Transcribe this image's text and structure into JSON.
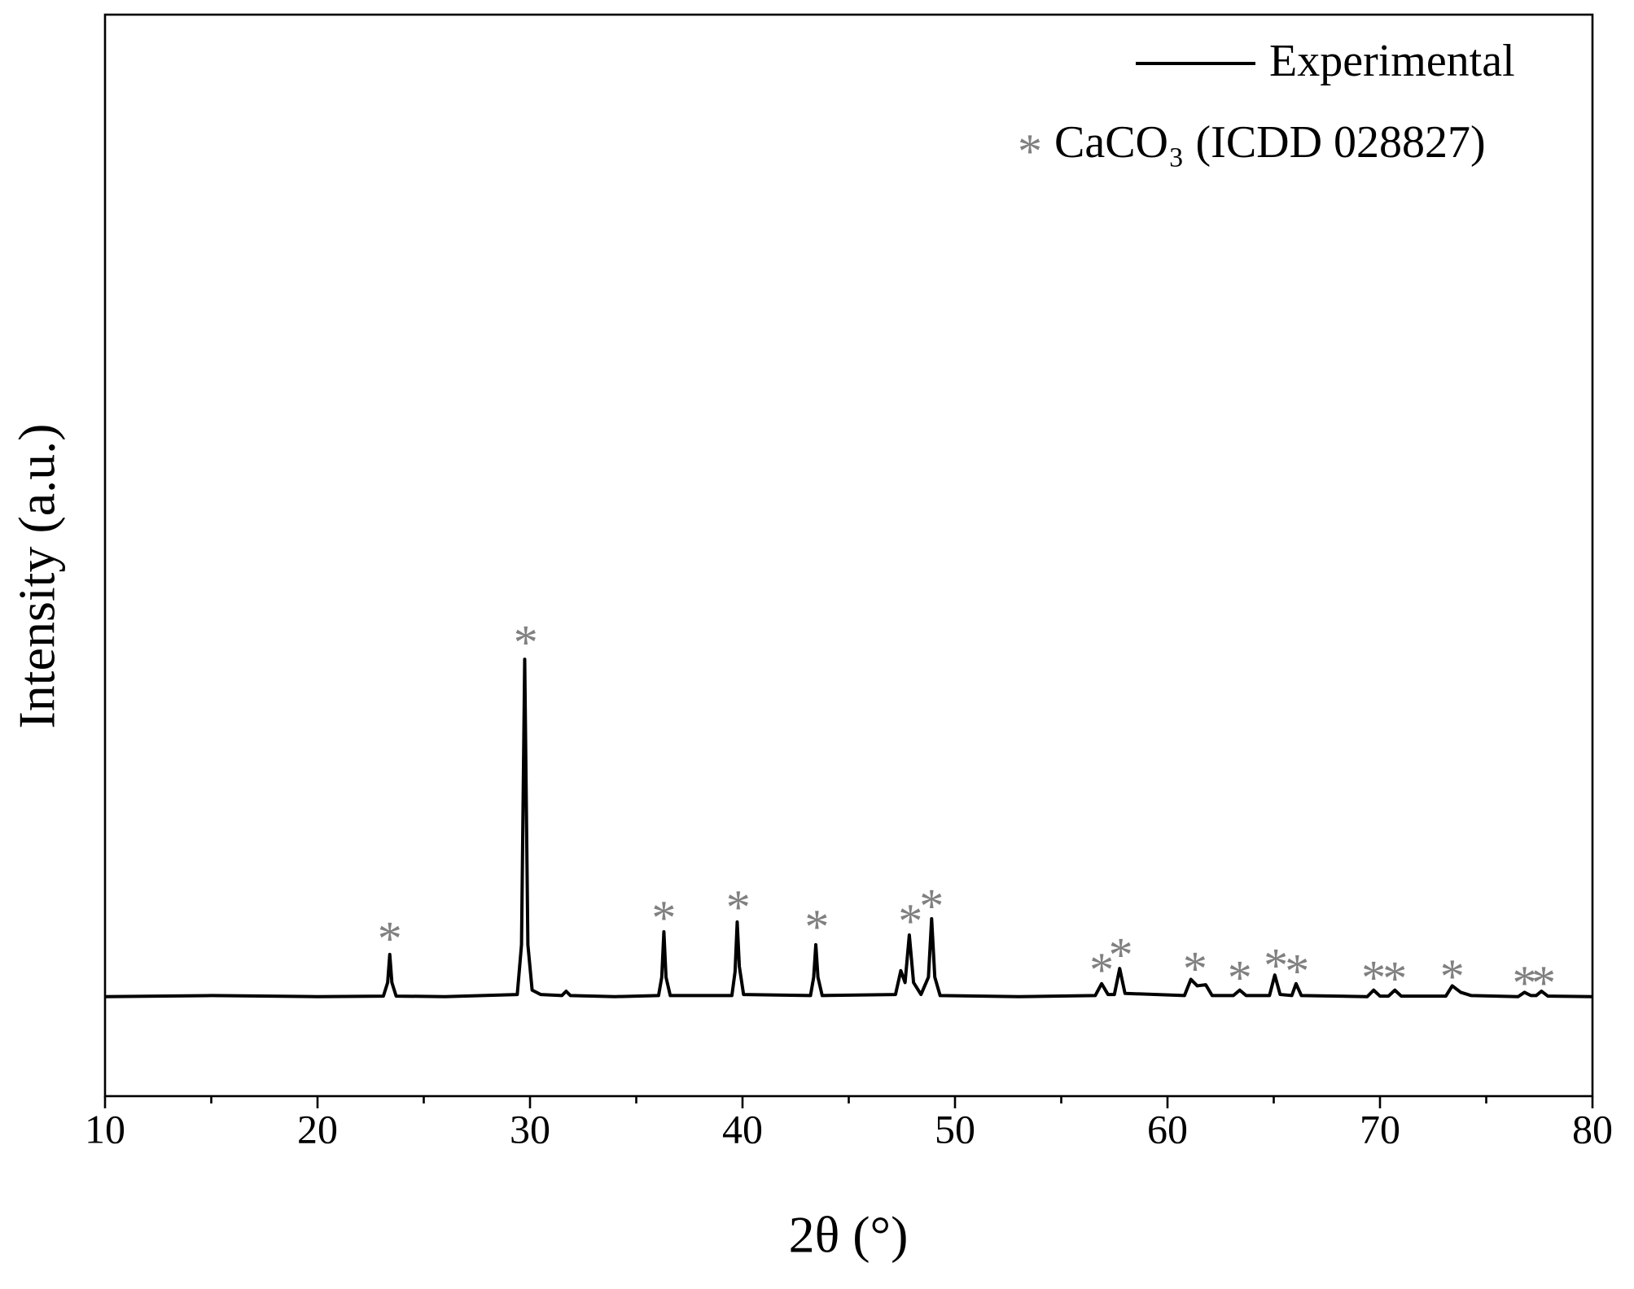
{
  "chart_data": {
    "type": "line",
    "x_label": "2θ (°)",
    "y_label": "Intensity (a.u.)",
    "xlim": [
      10,
      80
    ],
    "xticks": [
      10,
      20,
      30,
      40,
      50,
      60,
      70,
      80
    ],
    "xminorticks": [
      15,
      25,
      35,
      45,
      55,
      65,
      75
    ],
    "ylim": [
      0,
      100
    ],
    "legend": "upper right",
    "series": [
      {
        "name": "Experimental",
        "color": "#000000",
        "x": [
          10,
          15,
          20,
          23.1,
          23.3,
          23.4,
          23.5,
          23.7,
          26,
          29.4,
          29.6,
          29.75,
          29.9,
          30.1,
          30.5,
          31.5,
          31.7,
          31.9,
          34,
          36.05,
          36.2,
          36.3,
          36.4,
          36.6,
          39.5,
          39.65,
          39.75,
          39.85,
          40.05,
          43.2,
          43.35,
          43.45,
          43.55,
          43.75,
          47.2,
          47.45,
          47.65,
          47.85,
          48.05,
          48.4,
          48.75,
          48.9,
          49.05,
          49.3,
          53,
          56.6,
          56.9,
          57.2,
          57.5,
          57.75,
          58,
          60.8,
          61.1,
          61.4,
          61.8,
          62.1,
          63.1,
          63.4,
          63.7,
          64.8,
          65.05,
          65.3,
          65.85,
          66.05,
          66.3,
          69.4,
          69.7,
          70,
          70.4,
          70.7,
          71,
          73.1,
          73.4,
          73.8,
          74.3,
          76.5,
          76.8,
          77.1,
          77.35,
          77.6,
          77.9,
          80
        ],
        "values": [
          9.2,
          9.3,
          9.2,
          9.25,
          10.5,
          13.1,
          10.5,
          9.25,
          9.2,
          9.4,
          14,
          40.4,
          14,
          9.8,
          9.4,
          9.3,
          9.7,
          9.3,
          9.2,
          9.3,
          11,
          15.2,
          11,
          9.3,
          9.3,
          11.5,
          16.1,
          12,
          9.4,
          9.3,
          11,
          14.0,
          11,
          9.3,
          9.4,
          11.6,
          10.5,
          14.9,
          10.5,
          9.4,
          11,
          16.4,
          11,
          9.3,
          9.2,
          9.3,
          10.4,
          9.4,
          9.4,
          11.8,
          9.5,
          9.3,
          10.8,
          10.2,
          10.3,
          9.3,
          9.3,
          9.8,
          9.3,
          9.3,
          11.2,
          9.4,
          9.3,
          10.4,
          9.3,
          9.2,
          9.8,
          9.25,
          9.25,
          9.8,
          9.25,
          9.25,
          10.2,
          9.6,
          9.3,
          9.2,
          9.6,
          9.3,
          9.3,
          9.7,
          9.25,
          9.2
        ]
      }
    ],
    "reference": {
      "name": "CaCO₃ (ICDD 028827)",
      "marker": "*",
      "color": "#808080",
      "x": [
        23.4,
        29.8,
        36.3,
        39.8,
        43.5,
        47.9,
        48.9,
        56.9,
        57.8,
        61.3,
        63.4,
        65.1,
        66.1,
        69.7,
        70.7,
        73.4,
        76.8,
        77.7
      ],
      "y": [
        15.0,
        42.4,
        16.9,
        17.9,
        16.1,
        16.6,
        18.0,
        12.1,
        13.5,
        12.2,
        11.4,
        12.5,
        12.0,
        11.4,
        11.3,
        11.5,
        10.9,
        10.9
      ]
    }
  }
}
